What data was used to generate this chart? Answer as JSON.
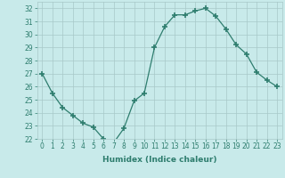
{
  "x": [
    0,
    1,
    2,
    3,
    4,
    5,
    6,
    7,
    8,
    9,
    10,
    11,
    12,
    13,
    14,
    15,
    16,
    17,
    18,
    19,
    20,
    21,
    22,
    23
  ],
  "y": [
    27.0,
    25.5,
    24.4,
    23.8,
    23.2,
    22.9,
    22.0,
    21.7,
    22.8,
    24.9,
    25.5,
    29.0,
    30.6,
    31.5,
    31.5,
    31.8,
    32.0,
    31.4,
    30.4,
    29.2,
    28.5,
    27.1,
    26.5,
    26.0
  ],
  "line_color": "#2e7d6e",
  "marker": "+",
  "marker_size": 4,
  "bg_color": "#c8eaea",
  "grid_color": "#a8c8c8",
  "xlabel": "Humidex (Indice chaleur)",
  "ylim": [
    22,
    32.5
  ],
  "yticks": [
    22,
    23,
    24,
    25,
    26,
    27,
    28,
    29,
    30,
    31,
    32
  ],
  "xticks": [
    0,
    1,
    2,
    3,
    4,
    5,
    6,
    7,
    8,
    9,
    10,
    11,
    12,
    13,
    14,
    15,
    16,
    17,
    18,
    19,
    20,
    21,
    22,
    23
  ],
  "tick_label_fontsize": 5.5,
  "xlabel_fontsize": 6.5
}
